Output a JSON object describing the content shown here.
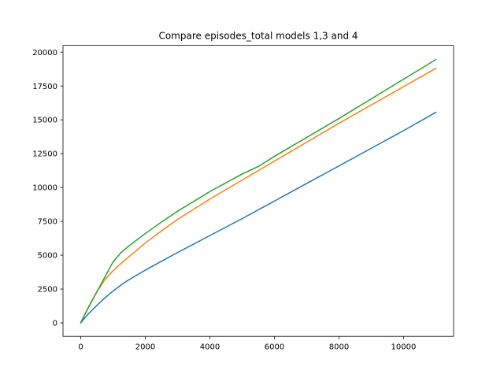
{
  "chart_data": {
    "type": "line",
    "title": "Compare episodes_total models 1,3 and 4",
    "xlabel": "",
    "ylabel": "",
    "xlim": [
      -550,
      11550
    ],
    "ylim": [
      -1000,
      20500
    ],
    "xticks": [
      0,
      2000,
      4000,
      6000,
      8000,
      10000
    ],
    "yticks": [
      0,
      2500,
      5000,
      7500,
      10000,
      12500,
      15000,
      17500,
      20000
    ],
    "xtick_labels": [
      "0",
      "2000",
      "4000",
      "6000",
      "8000",
      "10000"
    ],
    "ytick_labels": [
      "0",
      "2500",
      "5000",
      "7500",
      "10000",
      "12500",
      "15000",
      "17500",
      "20000"
    ],
    "grid": false,
    "legend": "none",
    "series": [
      {
        "color": "#1f77b4",
        "x": [
          0,
          100,
          250,
          500,
          750,
          1000,
          1250,
          1500,
          2000,
          2500,
          3000,
          4000,
          5000,
          6000,
          7000,
          8000,
          9000,
          10000,
          11000
        ],
        "y": [
          0,
          300,
          700,
          1300,
          1850,
          2350,
          2800,
          3200,
          3900,
          4550,
          5200,
          6450,
          7700,
          9000,
          10300,
          11600,
          12900,
          14200,
          15550
        ]
      },
      {
        "color": "#ff7f0e",
        "x": [
          0,
          100,
          250,
          500,
          750,
          1000,
          1250,
          1500,
          2000,
          2500,
          3000,
          4000,
          5000,
          6000,
          7000,
          8000,
          9000,
          10000,
          11000
        ],
        "y": [
          0,
          500,
          1200,
          2300,
          3200,
          3850,
          4400,
          4900,
          5900,
          6800,
          7650,
          9150,
          10550,
          11950,
          13350,
          14750,
          16100,
          17450,
          18800
        ]
      },
      {
        "color": "#2ca02c",
        "x": [
          0,
          100,
          250,
          500,
          750,
          1000,
          1250,
          1500,
          2000,
          2500,
          3000,
          4000,
          5000,
          5500,
          6000,
          7000,
          8000,
          9000,
          10000,
          11000
        ],
        "y": [
          0,
          500,
          1200,
          2300,
          3400,
          4500,
          5200,
          5700,
          6600,
          7450,
          8250,
          9700,
          11000,
          11550,
          12300,
          13700,
          15100,
          16550,
          18000,
          19450
        ]
      }
    ]
  }
}
